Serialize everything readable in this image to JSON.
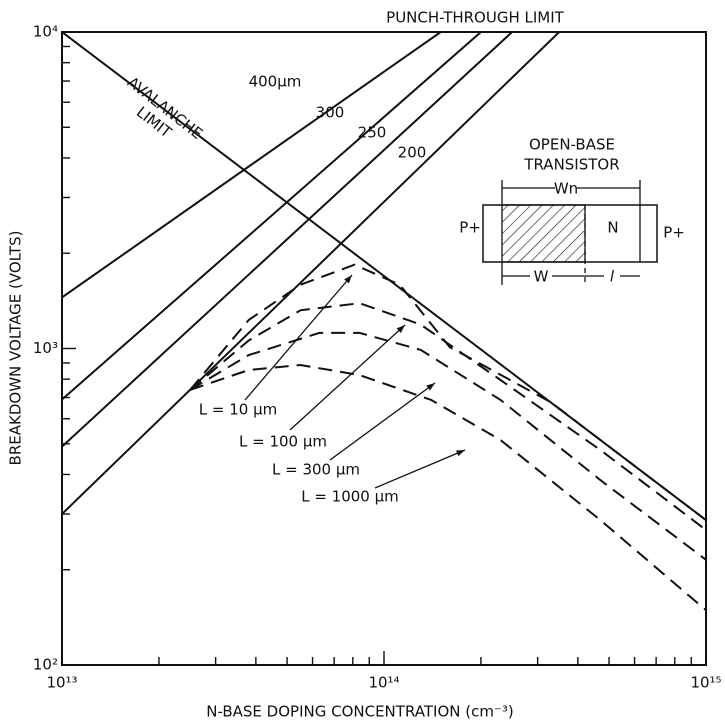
{
  "chart_data": {
    "type": "line",
    "xlabel": "N-BASE DOPING CONCENTRATION (cm⁻³)",
    "ylabel": "BREAKDOWN VOLTAGE (VOLTS)",
    "xscale": "log",
    "yscale": "log",
    "xlim": [
      10000000000000.0,
      1000000000000000.0
    ],
    "ylim": [
      100,
      10000
    ],
    "xticks": [
      {
        "value": 10000000000000.0,
        "label": "10¹³"
      },
      {
        "value": 100000000000000.0,
        "label": "10¹⁴"
      },
      {
        "value": 1000000000000000.0,
        "label": "10¹⁵"
      }
    ],
    "yticks": [
      {
        "value": 100,
        "label": "10²"
      },
      {
        "value": 1000,
        "label": "10³"
      },
      {
        "value": 10000,
        "label": "10⁴"
      }
    ],
    "xminorticks": [
      20000000000000.0,
      30000000000000.0,
      40000000000000.0,
      50000000000000.0,
      60000000000000.0,
      70000000000000.0,
      80000000000000.0,
      90000000000000.0,
      200000000000000.0,
      300000000000000.0,
      400000000000000.0,
      500000000000000.0,
      600000000000000.0,
      700000000000000.0,
      800000000000000.0,
      900000000000000.0
    ],
    "yminorticks": [
      200,
      300,
      400,
      500,
      600,
      700,
      800,
      900,
      2000,
      3000,
      4000,
      5000,
      6000,
      7000,
      8000,
      9000
    ],
    "annotations": [
      "PUNCH-THROUGH LIMIT"
    ],
    "series": [
      {
        "name": "AVALANCHE LIMIT",
        "color": "#111111",
        "dash": false,
        "x": [
          10000000000000.0,
          1000000000000000.0
        ],
        "values": [
          10000,
          287
        ]
      },
      {
        "name": "400μm",
        "color": "#111111",
        "dash": false,
        "x": [
          10000000000000.0,
          150000000000000.0
        ],
        "values": [
          1450,
          10000
        ]
      },
      {
        "name": "300",
        "color": "#111111",
        "dash": false,
        "x": [
          10000000000000.0,
          200000000000000.0
        ],
        "values": [
          690,
          10000
        ]
      },
      {
        "name": "250",
        "color": "#111111",
        "dash": false,
        "x": [
          10000000000000.0,
          250000000000000.0
        ],
        "values": [
          490,
          10000
        ]
      },
      {
        "name": "200",
        "color": "#111111",
        "dash": false,
        "x": [
          10000000000000.0,
          350000000000000.0
        ],
        "values": [
          300,
          10000
        ]
      },
      {
        "name": "L = 10 μm",
        "color": "#111111",
        "dash": true,
        "x": [
          25000000000000.0,
          38000000000000.0,
          55000000000000.0,
          81000000000000.0,
          112000000000000.0,
          160000000000000.0,
          330000000000000.0,
          470000000000000.0,
          1000000000000000.0
        ],
        "values": [
          740,
          1230,
          1590,
          1840,
          1590,
          1010,
          676,
          514,
          287
        ]
      },
      {
        "name": "L = 100 μm",
        "color": "#111111",
        "dash": true,
        "x": [
          25000000000000.0,
          38000000000000.0,
          55000000000000.0,
          84000000000000.0,
          130000000000000.0,
          230000000000000.0,
          470000000000000.0,
          1000000000000000.0
        ],
        "values": [
          740,
          1060,
          1320,
          1390,
          1190,
          795,
          478,
          267
        ]
      },
      {
        "name": "L = 300 μm",
        "color": "#111111",
        "dash": true,
        "x": [
          25000000000000.0,
          38000000000000.0,
          63000000000000.0,
          84000000000000.0,
          130000000000000.0,
          230000000000000.0,
          470000000000000.0,
          1000000000000000.0
        ],
        "values": [
          740,
          953,
          1120,
          1120,
          990,
          688,
          384,
          215
        ]
      },
      {
        "name": "L = 1000 μm",
        "color": "#111111",
        "dash": true,
        "x": [
          25000000000000.0,
          38000000000000.0,
          55000000000000.0,
          84000000000000.0,
          140000000000000.0,
          230000000000000.0,
          470000000000000.0,
          1000000000000000.0
        ],
        "values": [
          740,
          855,
          887,
          824,
          688,
          514,
          287,
          149
        ]
      }
    ],
    "inset": {
      "title": [
        "OPEN-BASE",
        "TRANSISTOR"
      ],
      "wn": "Wn",
      "left": "P+",
      "middle": "N",
      "right": "P+",
      "w": "W",
      "l": "l"
    }
  }
}
